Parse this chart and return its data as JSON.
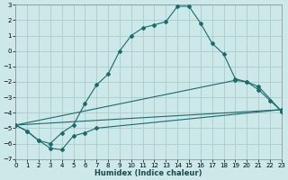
{
  "xlabel": "Humidex (Indice chaleur)",
  "xlim": [
    0,
    23
  ],
  "ylim": [
    -7,
    3
  ],
  "yticks": [
    -7,
    -6,
    -5,
    -4,
    -3,
    -2,
    -1,
    0,
    1,
    2,
    3
  ],
  "xticks": [
    0,
    1,
    2,
    3,
    4,
    5,
    6,
    7,
    8,
    9,
    10,
    11,
    12,
    13,
    14,
    15,
    16,
    17,
    18,
    19,
    20,
    21,
    22,
    23
  ],
  "background_color": "#cce8e8",
  "grid_color": "#aacccc",
  "line_color": "#1a6b6b",
  "line1_x": [
    0,
    1,
    2,
    3,
    4,
    5,
    6,
    7,
    8,
    9,
    10,
    11,
    12,
    13,
    14,
    15,
    16,
    17,
    18,
    19,
    20,
    21,
    22,
    23
  ],
  "line1_y": [
    -4.8,
    -5.2,
    -5.8,
    -6.0,
    -5.3,
    -4.8,
    -3.4,
    -2.2,
    -1.5,
    0.0,
    1.0,
    1.5,
    1.7,
    1.9,
    2.9,
    2.9,
    1.8,
    0.5,
    -0.2,
    -1.8,
    -2.0,
    -2.5,
    -3.2,
    -3.9
  ],
  "line2_x": [
    0,
    1,
    2,
    3,
    4,
    5,
    6,
    7,
    23
  ],
  "line2_y": [
    -4.8,
    -5.2,
    -5.8,
    -6.3,
    -6.4,
    -5.5,
    -5.3,
    -5.0,
    -3.8
  ],
  "line3_x": [
    0,
    19,
    20,
    21,
    23
  ],
  "line3_y": [
    -4.8,
    -1.9,
    -2.0,
    -2.3,
    -3.9
  ],
  "line4_x": [
    0,
    23
  ],
  "line4_y": [
    -4.8,
    -3.8
  ]
}
